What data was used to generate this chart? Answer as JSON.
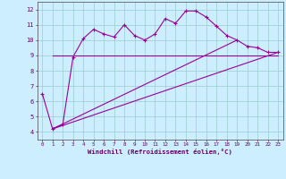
{
  "x": [
    0,
    1,
    2,
    3,
    4,
    5,
    6,
    7,
    8,
    9,
    10,
    11,
    12,
    13,
    14,
    15,
    16,
    17,
    18,
    19,
    20,
    21,
    22,
    23
  ],
  "line1": [
    6.5,
    4.2,
    4.5,
    8.9,
    10.1,
    10.7,
    10.4,
    10.2,
    11.0,
    10.3,
    10.0,
    10.4,
    11.4,
    11.1,
    11.9,
    11.9,
    11.5,
    10.9,
    10.3,
    10.0,
    9.6,
    9.5,
    9.2,
    9.2
  ],
  "line2": [
    [
      1,
      23
    ],
    [
      9.0,
      9.0
    ]
  ],
  "line3": [
    [
      1,
      19
    ],
    [
      4.2,
      10.0
    ]
  ],
  "line4": [
    [
      1,
      23
    ],
    [
      4.2,
      9.2
    ]
  ],
  "bg_color": "#cceeff",
  "grid_color": "#99cccc",
  "line_color": "#990099",
  "xlabel": "Windchill (Refroidissement éolien,°C)",
  "ylim": [
    3.5,
    12.5
  ],
  "xlim": [
    -0.5,
    23.5
  ],
  "yticks": [
    4,
    5,
    6,
    7,
    8,
    9,
    10,
    11,
    12
  ],
  "xtick_labels": [
    "0",
    "1",
    "2",
    "3",
    "4",
    "5",
    "6",
    "7",
    "8",
    "9",
    "10",
    "11",
    "12",
    "13",
    "14",
    "15",
    "16",
    "17",
    "18",
    "19",
    "20",
    "21",
    "22",
    "23"
  ],
  "xtick_positions": [
    0,
    1,
    2,
    3,
    4,
    5,
    6,
    7,
    8,
    9,
    10,
    11,
    12,
    13,
    14,
    15,
    16,
    17,
    18,
    19,
    20,
    21,
    22,
    23
  ]
}
